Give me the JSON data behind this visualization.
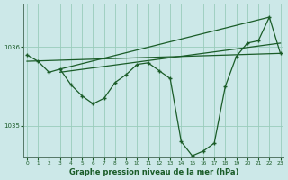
{
  "bg_color": "#cce8e8",
  "grid_color": "#99ccbb",
  "line_color": "#1a5c28",
  "xlabel": "Graphe pression niveau de la mer (hPa)",
  "yticks": [
    1035,
    1036
  ],
  "ylim": [
    1034.6,
    1036.55
  ],
  "xlim": [
    -0.3,
    23.3
  ],
  "xticks": [
    0,
    1,
    2,
    3,
    4,
    5,
    6,
    7,
    8,
    9,
    10,
    11,
    12,
    13,
    14,
    15,
    16,
    17,
    18,
    19,
    20,
    21,
    22,
    23
  ],
  "main_x": [
    0,
    1,
    2,
    3,
    4,
    5,
    6,
    7,
    8,
    9,
    10,
    11,
    12,
    13,
    14,
    15,
    16,
    17,
    18,
    19,
    20,
    21,
    22,
    23
  ],
  "main_y": [
    1035.9,
    1035.82,
    1035.68,
    1035.72,
    1035.52,
    1035.38,
    1035.28,
    1035.35,
    1035.55,
    1035.65,
    1035.78,
    1035.8,
    1035.7,
    1035.6,
    1034.8,
    1034.62,
    1034.68,
    1034.78,
    1035.5,
    1035.88,
    1036.05,
    1036.08,
    1036.38,
    1035.92
  ],
  "trend1_x": [
    0,
    23
  ],
  "trend1_y": [
    1035.82,
    1035.92
  ],
  "trend2_x": [
    3,
    23
  ],
  "trend2_y": [
    1035.68,
    1036.05
  ],
  "trend3_x": [
    3,
    22
  ],
  "trend3_y": [
    1035.72,
    1036.38
  ]
}
